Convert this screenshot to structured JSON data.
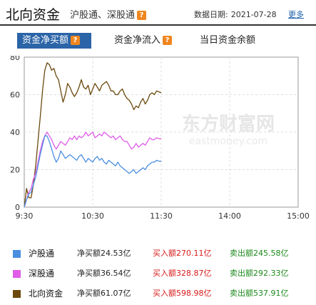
{
  "header": {
    "title": "北向资金",
    "subtitle": "沪股通、深股通",
    "help_icon": "question-icon",
    "date_label": "数据日期:",
    "date_value": "2021-07-28",
    "more_label": "更多"
  },
  "tabs": [
    {
      "label": "资金净买额",
      "active": true,
      "help_icon": "question-icon"
    },
    {
      "label": "资金净流入",
      "active": false,
      "help_icon": "question-icon"
    },
    {
      "label": "当日资金余额",
      "active": false
    }
  ],
  "watermark": {
    "text": "东方财富网",
    "sub": "eastmoney.com"
  },
  "colors": {
    "accent": "#2b64a7",
    "help_orange": "#f0861e",
    "hgt": "#4b8fe0",
    "sgt": "#e05ce8",
    "north": "#6b4a0e",
    "buy_red": "#d81a1a",
    "sell_green": "#1b8a1b"
  },
  "chart_data": {
    "type": "line",
    "x_ticks": [
      "9:30",
      "10:30",
      "11:30",
      "14:00",
      "15:00"
    ],
    "ylim": [
      0,
      80
    ],
    "y_ticks": [
      0,
      20,
      40,
      60,
      80
    ],
    "grid": true,
    "series": [
      {
        "name": "北向资金",
        "color": "#6b4a0e",
        "points": [
          [
            0,
            0
          ],
          [
            2,
            10
          ],
          [
            4,
            5
          ],
          [
            6,
            5
          ],
          [
            8,
            12
          ],
          [
            10,
            22
          ],
          [
            12,
            35
          ],
          [
            14,
            48
          ],
          [
            16,
            62
          ],
          [
            18,
            73
          ],
          [
            20,
            77
          ],
          [
            22,
            76
          ],
          [
            24,
            73
          ],
          [
            26,
            74
          ],
          [
            28,
            70
          ],
          [
            30,
            68
          ],
          [
            32,
            62
          ],
          [
            34,
            56
          ],
          [
            36,
            60
          ],
          [
            38,
            66
          ],
          [
            40,
            64
          ],
          [
            42,
            61
          ],
          [
            44,
            59
          ],
          [
            46,
            61
          ],
          [
            48,
            64
          ],
          [
            50,
            68
          ],
          [
            52,
            64
          ],
          [
            54,
            63
          ],
          [
            56,
            65
          ],
          [
            58,
            60
          ],
          [
            60,
            63
          ],
          [
            62,
            66
          ],
          [
            64,
            64
          ],
          [
            66,
            62
          ],
          [
            68,
            65
          ],
          [
            70,
            66
          ],
          [
            72,
            67
          ],
          [
            74,
            65
          ],
          [
            76,
            62
          ],
          [
            78,
            62
          ],
          [
            80,
            60
          ],
          [
            82,
            60
          ],
          [
            84,
            62
          ],
          [
            86,
            63
          ],
          [
            88,
            60
          ],
          [
            90,
            58
          ],
          [
            92,
            57
          ],
          [
            94,
            55
          ],
          [
            96,
            52
          ],
          [
            98,
            54
          ],
          [
            100,
            53
          ],
          [
            102,
            56
          ],
          [
            104,
            58
          ],
          [
            106,
            55
          ],
          [
            108,
            57
          ],
          [
            110,
            60
          ],
          [
            112,
            61
          ],
          [
            114,
            60
          ],
          [
            116,
            62
          ],
          [
            118,
            61.5
          ],
          [
            120,
            61
          ]
        ]
      },
      {
        "name": "深股通",
        "color": "#e05ce8",
        "points": [
          [
            0,
            0
          ],
          [
            2,
            4
          ],
          [
            4,
            8
          ],
          [
            6,
            10
          ],
          [
            8,
            15
          ],
          [
            10,
            18
          ],
          [
            12,
            24
          ],
          [
            14,
            30
          ],
          [
            16,
            35
          ],
          [
            18,
            38
          ],
          [
            20,
            40
          ],
          [
            22,
            38
          ],
          [
            24,
            36
          ],
          [
            26,
            33
          ],
          [
            28,
            31
          ],
          [
            30,
            33
          ],
          [
            32,
            35
          ],
          [
            34,
            34
          ],
          [
            36,
            33
          ],
          [
            38,
            35
          ],
          [
            40,
            37
          ],
          [
            42,
            36
          ],
          [
            44,
            38
          ],
          [
            46,
            36
          ],
          [
            48,
            38
          ],
          [
            50,
            37
          ],
          [
            52,
            38
          ],
          [
            54,
            40
          ],
          [
            56,
            38
          ],
          [
            58,
            39
          ],
          [
            60,
            40
          ],
          [
            62,
            37
          ],
          [
            64,
            38
          ],
          [
            66,
            39
          ],
          [
            68,
            38
          ],
          [
            70,
            40
          ],
          [
            72,
            39
          ],
          [
            74,
            38
          ],
          [
            76,
            37
          ],
          [
            78,
            38
          ],
          [
            80,
            36
          ],
          [
            82,
            37
          ],
          [
            84,
            38
          ],
          [
            86,
            36
          ],
          [
            88,
            35
          ],
          [
            90,
            35
          ],
          [
            92,
            33
          ],
          [
            94,
            31
          ],
          [
            96,
            32
          ],
          [
            98,
            34
          ],
          [
            100,
            32
          ],
          [
            102,
            33
          ],
          [
            104,
            34
          ],
          [
            106,
            33
          ],
          [
            108,
            35
          ],
          [
            110,
            37
          ],
          [
            112,
            36
          ],
          [
            114,
            36
          ],
          [
            116,
            37
          ],
          [
            118,
            36.5
          ],
          [
            120,
            36.5
          ]
        ]
      },
      {
        "name": "沪股通",
        "color": "#4b8fe0",
        "points": [
          [
            0,
            0
          ],
          [
            2,
            4
          ],
          [
            4,
            7
          ],
          [
            6,
            8
          ],
          [
            8,
            12
          ],
          [
            10,
            16
          ],
          [
            12,
            22
          ],
          [
            14,
            28
          ],
          [
            16,
            33
          ],
          [
            18,
            38
          ],
          [
            20,
            38
          ],
          [
            22,
            35
          ],
          [
            24,
            31
          ],
          [
            26,
            27
          ],
          [
            28,
            24
          ],
          [
            30,
            26
          ],
          [
            32,
            30
          ],
          [
            34,
            28
          ],
          [
            36,
            26
          ],
          [
            38,
            27
          ],
          [
            40,
            28
          ],
          [
            42,
            27
          ],
          [
            44,
            26
          ],
          [
            46,
            25
          ],
          [
            48,
            27
          ],
          [
            50,
            28
          ],
          [
            52,
            26
          ],
          [
            54,
            24
          ],
          [
            56,
            26
          ],
          [
            58,
            25
          ],
          [
            60,
            24
          ],
          [
            62,
            26
          ],
          [
            64,
            27
          ],
          [
            66,
            25
          ],
          [
            68,
            26
          ],
          [
            70,
            24
          ],
          [
            72,
            23
          ],
          [
            74,
            25
          ],
          [
            76,
            24
          ],
          [
            78,
            23
          ],
          [
            80,
            22
          ],
          [
            82,
            24
          ],
          [
            84,
            22
          ],
          [
            86,
            21
          ],
          [
            88,
            20
          ],
          [
            90,
            19
          ],
          [
            92,
            18
          ],
          [
            94,
            19
          ],
          [
            96,
            20
          ],
          [
            98,
            18
          ],
          [
            100,
            19
          ],
          [
            102,
            20
          ],
          [
            104,
            21
          ],
          [
            106,
            20
          ],
          [
            108,
            22
          ],
          [
            110,
            23
          ],
          [
            112,
            24
          ],
          [
            114,
            24
          ],
          [
            116,
            25
          ],
          [
            118,
            24.5
          ],
          [
            120,
            24.5
          ]
        ]
      }
    ]
  },
  "legend": [
    {
      "name": "沪股通",
      "color": "#4b8fe0",
      "net": "净买额24.53亿",
      "buy": "买入额270.11亿",
      "sell": "卖出额245.58亿"
    },
    {
      "name": "深股通",
      "color": "#e05ce8",
      "net": "净买额36.54亿",
      "buy": "买入额328.87亿",
      "sell": "卖出额292.33亿"
    },
    {
      "name": "北向资金",
      "color": "#6b4a0e",
      "net": "净买额61.07亿",
      "buy": "买入额598.98亿",
      "sell": "卖出额537.91亿"
    }
  ]
}
